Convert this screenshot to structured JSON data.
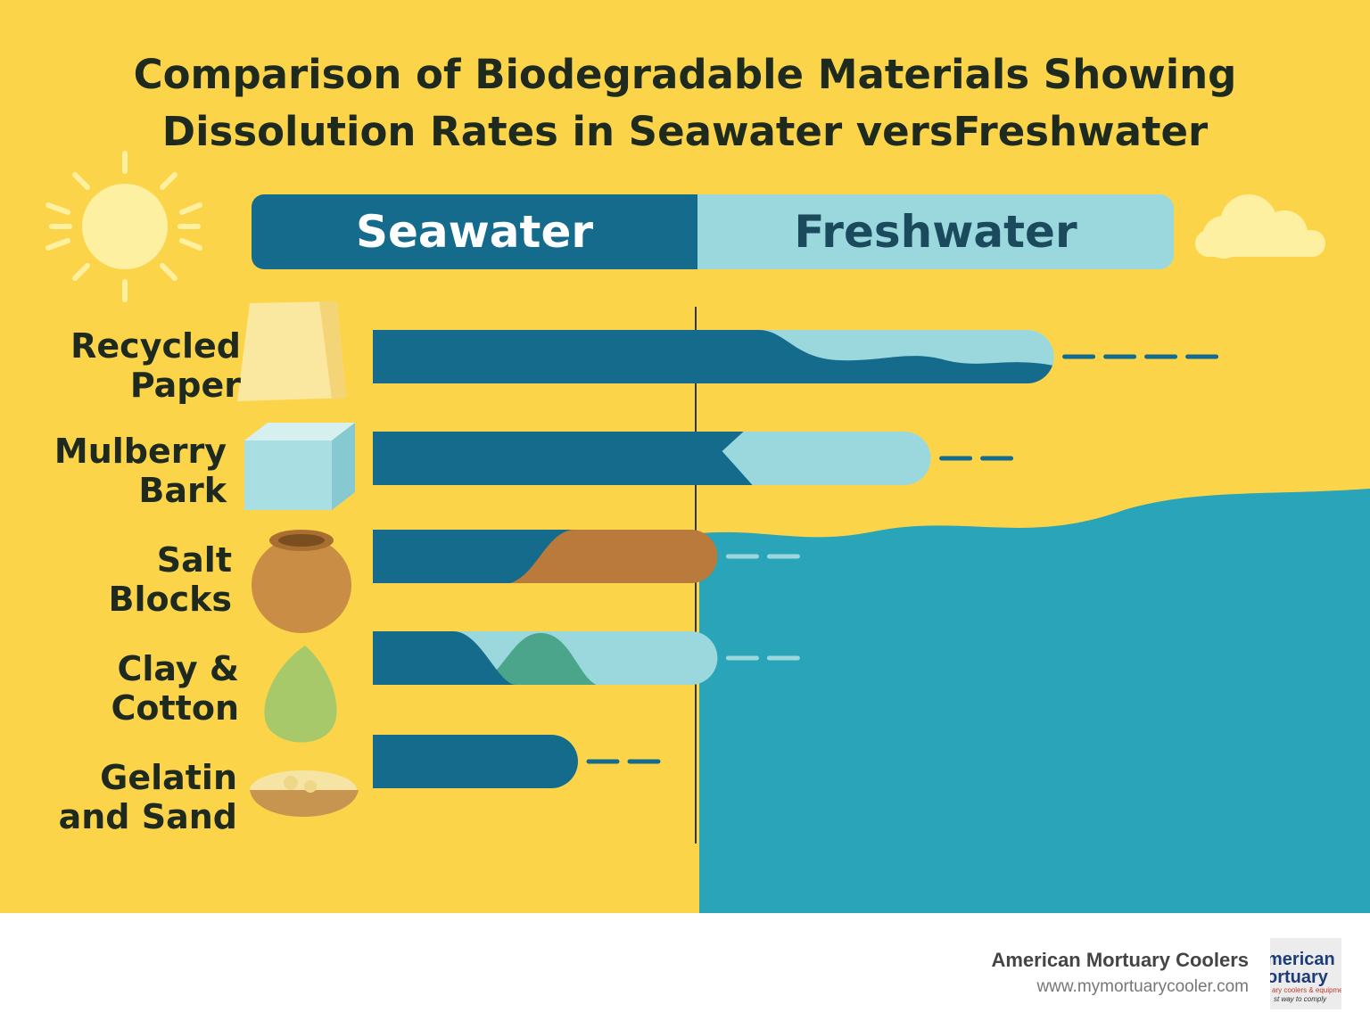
{
  "chart_data": {
    "type": "bar",
    "title": "Comparison of Biodegradable Materials Showing Dissolution Rates in Seawater versFreshwater",
    "title_lines": [
      "Comparison of Biodegradable Materials Showing",
      "Dissolution Rates in Seawater versFreshwater"
    ],
    "series": [
      {
        "name": "Seawater",
        "color": "#146b8c"
      },
      {
        "name": "Freshwater",
        "color": "#9bd8de"
      }
    ],
    "categories": [
      {
        "label": [
          "Recycled",
          "Paper"
        ],
        "icon": "paper-block-icon",
        "bar_end": 0.83,
        "seawater_end": 0.47,
        "overlay_color": "#9bd8de",
        "dash_count": 4
      },
      {
        "label": [
          "Mulberry",
          "Bark"
        ],
        "icon": "bark-cube-icon",
        "bar_end": 0.68,
        "seawater_end": 0.43,
        "overlay_color": "#9bd8de",
        "dash_count": 2
      },
      {
        "label": [
          "Salt",
          "Blocks"
        ],
        "icon": "clay-pot-icon",
        "bar_end": 0.42,
        "seawater_end": 0.2,
        "overlay_color": "#b97a3c",
        "dash_count": 2
      },
      {
        "label": [
          "Clay &",
          "Cotton"
        ],
        "icon": "green-egg-icon",
        "bar_end": 0.42,
        "seawater_end": 0.12,
        "overlay_color": "#9bd8de",
        "dash_count": 2
      },
      {
        "label": [
          "Gelatin",
          "and Sand"
        ],
        "icon": "sand-bowl-icon",
        "bar_end": 0.25,
        "seawater_end": 0.25,
        "overlay_color": "",
        "dash_count": 2
      }
    ],
    "colors": {
      "background": "#fbd44a",
      "water": "#2aa4b8",
      "dark_bar": "#146b8c",
      "light_bar": "#9bd8de"
    }
  },
  "footer": {
    "brand_name": "American Mortuary Coolers",
    "url": "www.mymortuarycooler.com",
    "logo_line1": "merican",
    "logo_line2": "ortuary",
    "logo_line3": "ary coolers & equipment",
    "logo_line4": "st way to comply"
  },
  "decor": {
    "sun": "sun-icon",
    "cloud": "cloud-icon"
  }
}
